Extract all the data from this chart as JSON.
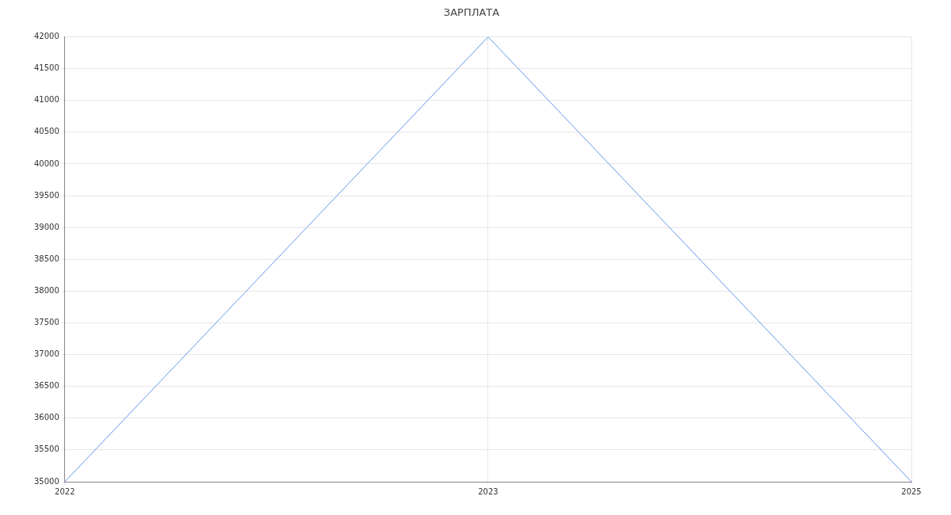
{
  "chart_data": {
    "type": "line",
    "title": "ЗАРПЛАТА",
    "categories": [
      "2022",
      "2023",
      "2025"
    ],
    "series": [
      {
        "color": "#6495ed",
        "values": [
          35000,
          42000,
          35000
        ]
      }
    ],
    "ylim": [
      35000,
      42000
    ],
    "yticks": [
      35000,
      35500,
      36000,
      36500,
      37000,
      37500,
      38000,
      38500,
      39000,
      39500,
      40000,
      40500,
      41000,
      41500,
      42000
    ],
    "grid": true,
    "legend": false,
    "marker": "none",
    "line_style": "solid"
  }
}
